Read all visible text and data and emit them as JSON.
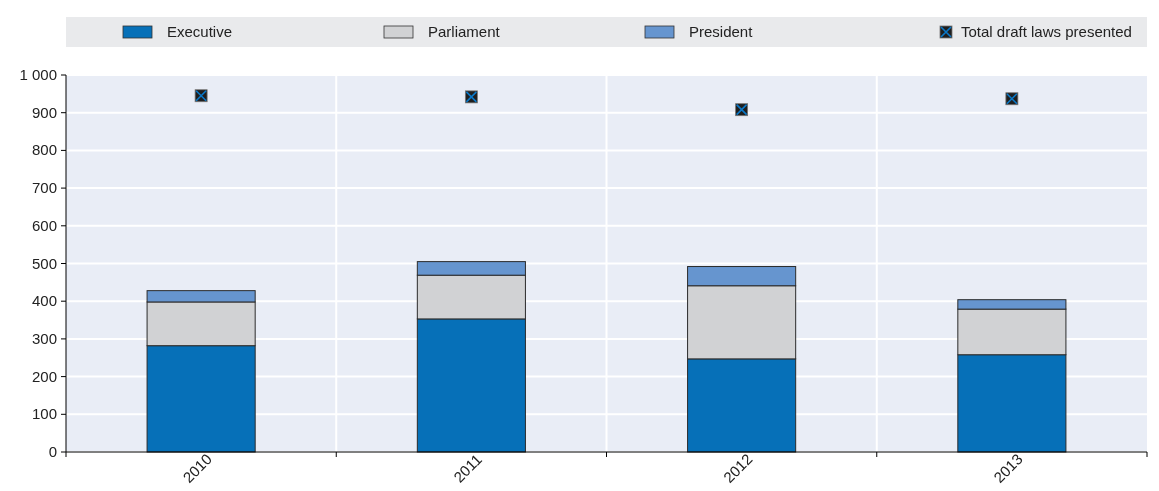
{
  "chart_data": {
    "type": "bar",
    "stacked": true,
    "categories": [
      "2010",
      "2011",
      "2012",
      "2013"
    ],
    "series": [
      {
        "name": "Executive",
        "color": "#0670b8",
        "values": [
          282,
          353,
          247,
          258
        ]
      },
      {
        "name": "Parliament",
        "color": "#d1d2d4",
        "values": [
          116,
          116,
          194,
          121
        ]
      },
      {
        "name": "President",
        "color": "#6695cf",
        "values": [
          30,
          36,
          51,
          25
        ]
      },
      {
        "name": "Total draft laws presented",
        "type": "scatter",
        "color": "#1f1f1f",
        "marker": "square",
        "values": [
          945,
          942,
          908,
          937
        ]
      }
    ],
    "ylim": [
      0,
      1000
    ],
    "yticks": [
      0,
      100,
      200,
      300,
      400,
      500,
      600,
      700,
      800,
      900,
      {
        "value": 1000,
        "label": "1 000"
      }
    ],
    "grid": true,
    "legend": "top"
  }
}
